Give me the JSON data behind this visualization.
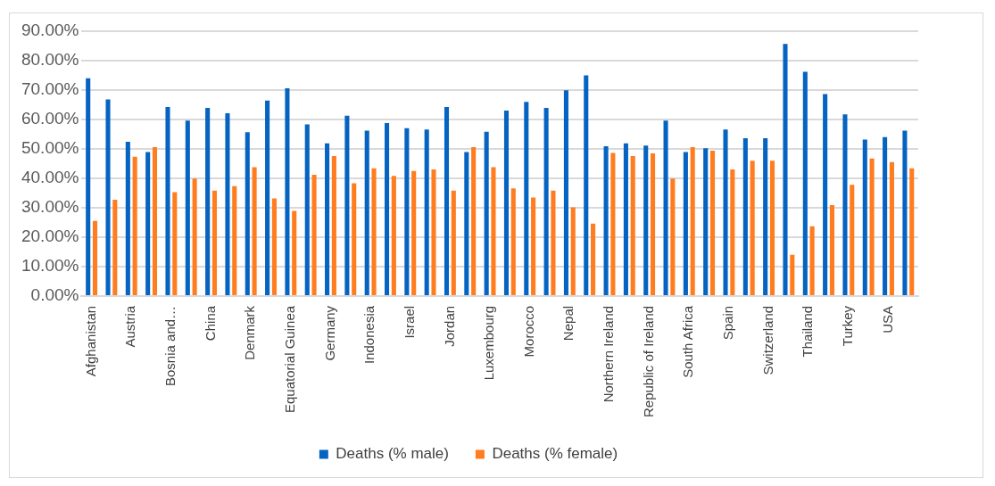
{
  "chart_data": {
    "type": "bar",
    "categories": [
      "Afghanistan",
      null,
      "Austria",
      null,
      "Bosnia and…",
      null,
      "China",
      null,
      "Denmark",
      null,
      "Equatorial Guinea",
      null,
      "Germany",
      null,
      "Indonesia",
      null,
      "Israel",
      null,
      "Jordan",
      null,
      "Luxembourg",
      null,
      "Morocco",
      null,
      "Nepal",
      null,
      "Northern Ireland",
      null,
      "Republic of Ireland",
      null,
      "South Africa",
      null,
      "Spain",
      null,
      "Switzerland",
      null,
      "Thailand",
      null,
      "Turkey",
      null,
      "USA",
      null
    ],
    "series": [
      {
        "name": "Deaths (% male)",
        "color": "#0563c1",
        "values": [
          74.0,
          66.8,
          52.4,
          48.9,
          64.2,
          59.6,
          63.9,
          62.1,
          55.7,
          66.4,
          70.6,
          58.3,
          51.9,
          61.3,
          56.2,
          58.8,
          57.0,
          56.6,
          64.2,
          48.9,
          55.8,
          63.0,
          66.0,
          63.9,
          69.9,
          75.0,
          50.9,
          51.9,
          51.1,
          59.6,
          48.9,
          50.2,
          56.6,
          53.6,
          53.6,
          85.7,
          76.2,
          68.6,
          61.7,
          53.2,
          54.0,
          56.2
        ]
      },
      {
        "name": "Deaths (% female)",
        "color": "#ff7c1f",
        "values": [
          25.5,
          32.7,
          47.3,
          50.6,
          35.3,
          39.9,
          35.8,
          37.3,
          43.8,
          33.2,
          28.9,
          41.2,
          47.6,
          38.3,
          43.4,
          40.8,
          42.5,
          43.0,
          35.8,
          50.6,
          43.8,
          36.6,
          33.5,
          35.8,
          30.1,
          24.6,
          48.6,
          47.6,
          48.5,
          39.9,
          50.6,
          49.4,
          43.0,
          46.0,
          46.0,
          14.0,
          23.7,
          30.9,
          37.8,
          46.7,
          45.5,
          43.4
        ]
      }
    ],
    "ylim": [
      0,
      90
    ],
    "yticks": [
      {
        "value": 0,
        "label": "0.00%"
      },
      {
        "value": 10,
        "label": "10.00%"
      },
      {
        "value": 20,
        "label": "20.00%"
      },
      {
        "value": 30,
        "label": "30.00%"
      },
      {
        "value": 40,
        "label": "40.00%"
      },
      {
        "value": 50,
        "label": "50.00%"
      },
      {
        "value": 60,
        "label": "60.00%"
      },
      {
        "value": 70,
        "label": "70.00%"
      },
      {
        "value": 80,
        "label": "80.00%"
      },
      {
        "value": 90,
        "label": "90.00%"
      }
    ],
    "grid": "y",
    "legend": "bottom"
  }
}
